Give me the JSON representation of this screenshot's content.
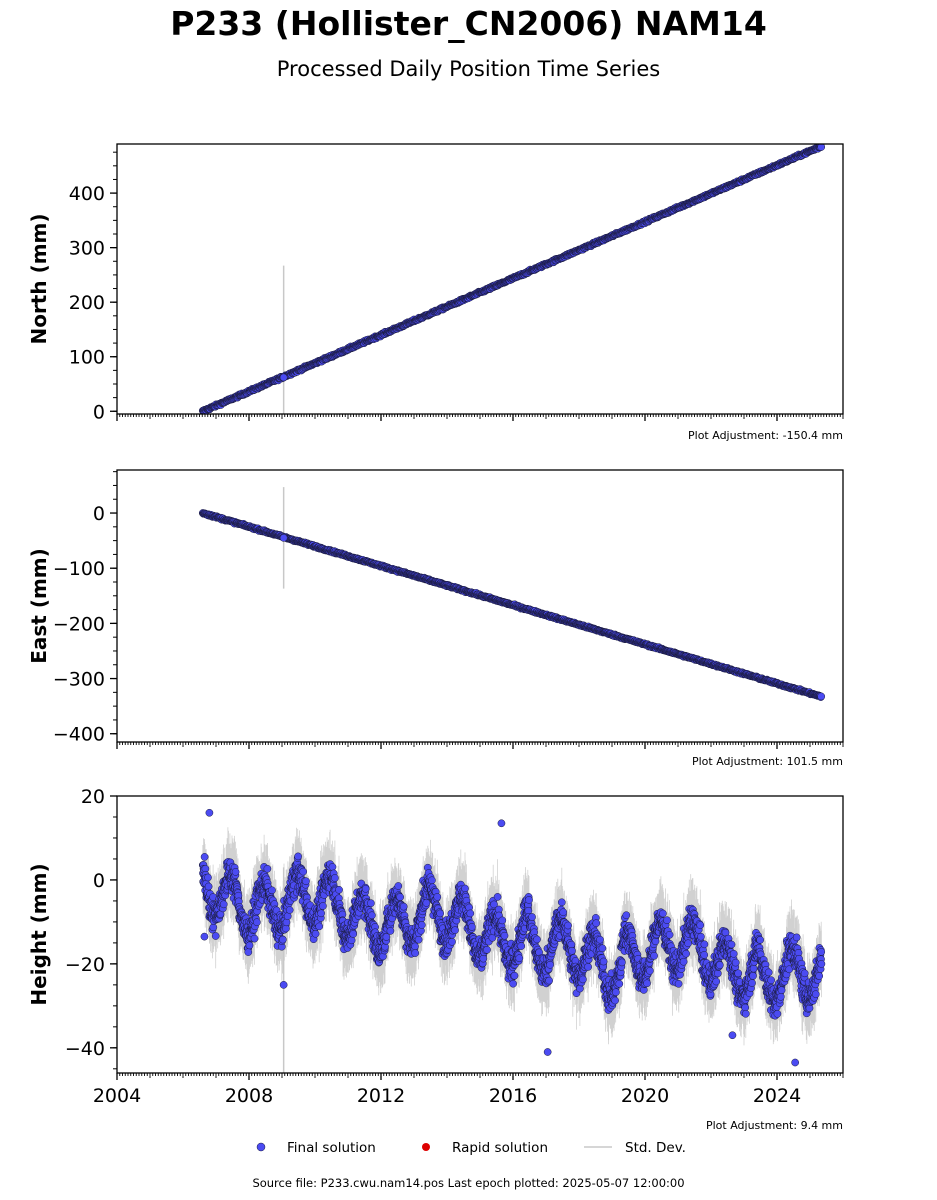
{
  "figure": {
    "title": "P233 (Hollister_CN2006) NAM14",
    "subtitle": "Processed Daily Position Time Series",
    "source_note": "Source file: P233.cwu.nam14.pos  Last epoch plotted: 2025-05-07 12:00:00"
  },
  "legend": {
    "final": "Final solution",
    "rapid": "Rapid solution",
    "std": "Std. Dev."
  },
  "colors": {
    "final": "#4b4bf2",
    "rapid": "#dd0000",
    "std": "#c8c8c8",
    "edge": "#1a1a3a"
  },
  "chart_data": [
    {
      "type": "scatter",
      "ylabel": "North (mm)",
      "adjustment": "Plot Adjustment: -150.4 mm",
      "xlim": [
        2004,
        2026
      ],
      "ylim": [
        -5,
        490
      ],
      "yticks": [
        0,
        100,
        200,
        300,
        400
      ],
      "ytick_labels": [
        "0",
        "100",
        "200",
        "300",
        "400"
      ],
      "trend": {
        "x_start": 2006.6,
        "y_start": 0,
        "x_end": 2025.35,
        "y_end": 486
      },
      "x_start": 2006.6,
      "x_end": 2025.35,
      "scatter_mm": 2.5,
      "std_mm": 3,
      "outliers": [
        {
          "x": 2009.05,
          "y": 62,
          "std": 205
        }
      ],
      "series": [
        {
          "name": "Final solution",
          "values": "daily, 2006.6–2025.35, linear 0 → 486 mm"
        }
      ]
    },
    {
      "type": "scatter",
      "ylabel": "East (mm)",
      "adjustment": "Plot Adjustment: 101.5 mm",
      "xlim": [
        2004,
        2026
      ],
      "ylim": [
        -415,
        78
      ],
      "yticks": [
        -400,
        -300,
        -200,
        -100,
        0
      ],
      "ytick_labels": [
        "−400",
        "−300",
        "−200",
        "−100",
        "0"
      ],
      "trend": {
        "x_start": 2006.6,
        "y_start": 0,
        "x_end": 2025.35,
        "y_end": -333
      },
      "x_start": 2006.6,
      "x_end": 2025.35,
      "scatter_mm": 2.0,
      "std_mm": 3,
      "outliers": [
        {
          "x": 2009.05,
          "y": -45,
          "std": 92
        }
      ],
      "series": [
        {
          "name": "Final solution",
          "values": "daily, 2006.6–2025.35, linear 0 → -333 mm"
        }
      ]
    },
    {
      "type": "scatter",
      "ylabel": "Height (mm)",
      "adjustment": "Plot Adjustment: 9.4 mm",
      "xlim": [
        2004,
        2026
      ],
      "ylim": [
        -46,
        20
      ],
      "yticks": [
        -40,
        -20,
        0,
        20
      ],
      "ytick_labels": [
        "−40",
        "−20",
        "0",
        "20"
      ],
      "xticks": [
        2004,
        2008,
        2012,
        2016,
        2020,
        2024
      ],
      "xtick_labels": [
        "2004",
        "2008",
        "2012",
        "2016",
        "2020",
        "2024"
      ],
      "trend": {
        "x_start": 2006.6,
        "y_start": -3,
        "x_end": 2025.35,
        "y_end": -22
      },
      "x_start": 2006.6,
      "x_end": 2025.35,
      "seasonal_amp": 6,
      "scatter_mm": 4.5,
      "std_mm": 6,
      "outliers": [
        {
          "x": 2009.05,
          "y": -25,
          "std": 28
        },
        {
          "x": 2017.05,
          "y": -41,
          "std": 0
        },
        {
          "x": 2006.65,
          "y": -13.5,
          "std": 0
        },
        {
          "x": 2022.65,
          "y": -37,
          "std": 0
        },
        {
          "x": 2024.55,
          "y": -43.5,
          "std": 0
        },
        {
          "x": 2006.8,
          "y": 16,
          "std": 0
        },
        {
          "x": 2015.65,
          "y": 13.5,
          "std": 0
        }
      ],
      "series": [
        {
          "name": "Final solution",
          "values": "daily, 2006.6–2025.35, seasonal around trend -3 → -22 mm"
        }
      ]
    }
  ]
}
